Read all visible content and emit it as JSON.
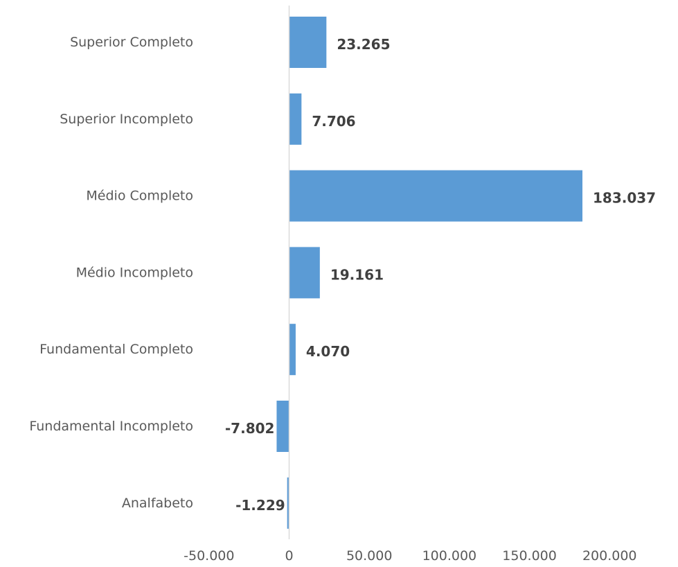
{
  "chart_data": {
    "type": "bar",
    "orientation": "horizontal",
    "categories": [
      "Superior Completo",
      "Superior Incompleto",
      "Médio Completo",
      "Médio Incompleto",
      "Fundamental Completo",
      "Fundamental Incompleto",
      "Analfabeto"
    ],
    "values": [
      23265,
      7706,
      183037,
      19161,
      4070,
      -7802,
      -1229
    ],
    "data_labels": [
      "23.265",
      "7.706",
      "183.037",
      "19.161",
      "4.070",
      "-7.802",
      "-1.229"
    ],
    "x_ticks": [
      -50000,
      0,
      50000,
      100000,
      150000,
      200000
    ],
    "x_tick_labels": [
      "-50.000",
      "0",
      "50.000",
      "100.000",
      "150.000",
      "200.000"
    ],
    "xlim": [
      -50000,
      200000
    ],
    "title": "",
    "xlabel": "",
    "ylabel": "",
    "grid": false,
    "legend": "none",
    "colors": {
      "bar": "#5B9BD5",
      "axis": "#D9D9D9",
      "category_text": "#595959",
      "value_text": "#404040"
    }
  }
}
